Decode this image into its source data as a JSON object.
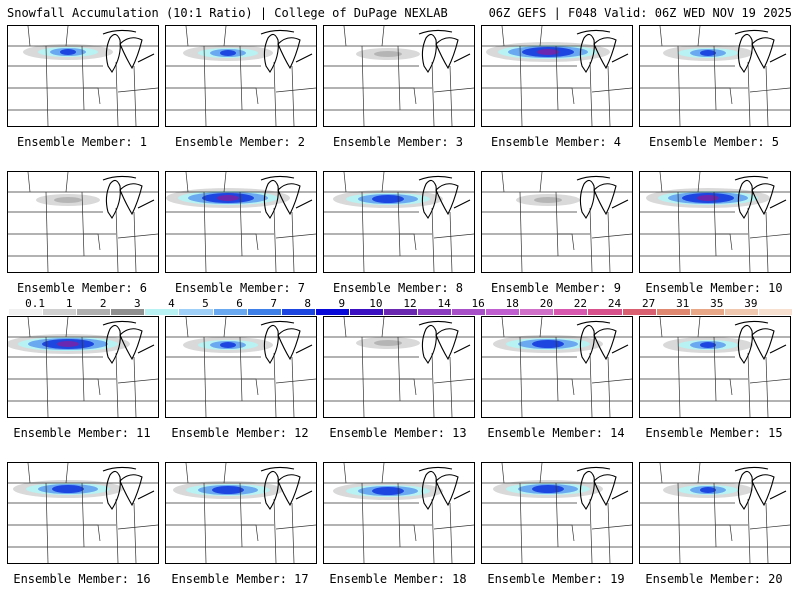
{
  "header": {
    "left": "Snowfall Accumulation (10:1 Ratio) | College of DuPage NEXLAB",
    "right": "06Z GEFS | F048 Valid: 06Z WED NOV 19 2025"
  },
  "legend": {
    "ticks": [
      "0.1",
      "1",
      "2",
      "3",
      "4",
      "5",
      "6",
      "7",
      "8",
      "9",
      "10",
      "12",
      "14",
      "16",
      "18",
      "20",
      "22",
      "24",
      "27",
      "31",
      "35",
      "39"
    ],
    "colors": [
      "#f0f0f0",
      "#d0d0d0",
      "#b0b0b0",
      "#909090",
      "#b8f2f2",
      "#9fd0f8",
      "#6aa8f0",
      "#3f7fe8",
      "#1d45e0",
      "#0a0ad8",
      "#3a10c0",
      "#6a28b0",
      "#8c3cc0",
      "#a850c8",
      "#c060d0",
      "#d070c8",
      "#d858b0",
      "#d8508c",
      "#d86070",
      "#e08870",
      "#e8a888",
      "#f0c8b0",
      "#f8e0d0"
    ]
  },
  "members": [
    {
      "label": "Ensemble Member: 1",
      "snow": "light"
    },
    {
      "label": "Ensemble Member: 2",
      "snow": "light"
    },
    {
      "label": "Ensemble Member: 3",
      "snow": "trace"
    },
    {
      "label": "Ensemble Member: 4",
      "snow": "heavy"
    },
    {
      "label": "Ensemble Member: 5",
      "snow": "light"
    },
    {
      "label": "Ensemble Member: 6",
      "snow": "trace"
    },
    {
      "label": "Ensemble Member: 7",
      "snow": "heavy"
    },
    {
      "label": "Ensemble Member: 8",
      "snow": "moderate"
    },
    {
      "label": "Ensemble Member: 9",
      "snow": "trace"
    },
    {
      "label": "Ensemble Member: 10",
      "snow": "heavy"
    },
    {
      "label": "Ensemble Member: 11",
      "snow": "heavy"
    },
    {
      "label": "Ensemble Member: 12",
      "snow": "light"
    },
    {
      "label": "Ensemble Member: 13",
      "snow": "trace"
    },
    {
      "label": "Ensemble Member: 14",
      "snow": "moderate"
    },
    {
      "label": "Ensemble Member: 15",
      "snow": "light"
    },
    {
      "label": "Ensemble Member: 16",
      "snow": "moderate"
    },
    {
      "label": "Ensemble Member: 17",
      "snow": "moderate"
    },
    {
      "label": "Ensemble Member: 18",
      "snow": "moderate"
    },
    {
      "label": "Ensemble Member: 19",
      "snow": "moderate"
    },
    {
      "label": "Ensemble Member: 20",
      "snow": "light"
    }
  ]
}
